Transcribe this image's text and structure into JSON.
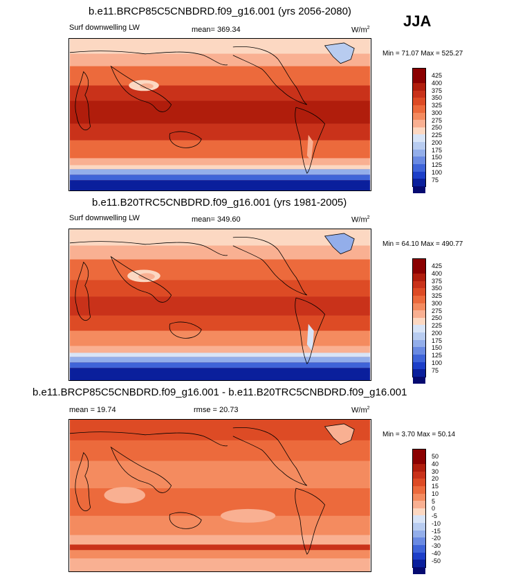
{
  "season": "JJA",
  "panels": [
    {
      "title": "b.e11.BRCP85C5CNBDRD.f09_g16.001 (yrs 2056-2080)",
      "left_label": "Surf downwelling LW",
      "mean_label": "mean= 369.34",
      "units": "W/m",
      "units_sup": "2",
      "minmax": "Min = 71.07 Max = 525.27",
      "colorbar": {
        "levels": [
          "425",
          "400",
          "375",
          "350",
          "325",
          "300",
          "275",
          "250",
          "225",
          "200",
          "175",
          "150",
          "125",
          "100",
          "75"
        ],
        "colors": [
          "#8b0000",
          "#b01d0c",
          "#c9321a",
          "#dd4b25",
          "#ec6a3c",
          "#f48b5f",
          "#f9b092",
          "#fcd8c2",
          "#d8e4f7",
          "#b8ccf0",
          "#93aeea",
          "#6a8ae2",
          "#3f64d8",
          "#1d3fc8",
          "#0a1f9c",
          "#050a70"
        ]
      }
    },
    {
      "title": "b.e11.B20TRC5CNBDRD.f09_g16.001 (yrs 1981-2005)",
      "left_label": "Surf downwelling LW",
      "mean_label": "mean= 349.60",
      "units": "W/m",
      "units_sup": "2",
      "minmax": "Min = 64.10 Max = 490.77",
      "colorbar": {
        "levels": [
          "425",
          "400",
          "375",
          "350",
          "325",
          "300",
          "275",
          "250",
          "225",
          "200",
          "175",
          "150",
          "125",
          "100",
          "75"
        ],
        "colors": [
          "#8b0000",
          "#b01d0c",
          "#c9321a",
          "#dd4b25",
          "#ec6a3c",
          "#f48b5f",
          "#f9b092",
          "#fcd8c2",
          "#d8e4f7",
          "#b8ccf0",
          "#93aeea",
          "#6a8ae2",
          "#3f64d8",
          "#1d3fc8",
          "#0a1f9c",
          "#050a70"
        ]
      }
    },
    {
      "title": "b.e11.BRCP85C5CNBDRD.f09_g16.001 - b.e11.B20TRC5CNBDRD.f09_g16.001",
      "left_label": "mean = 19.74",
      "mean_label": "rmse = 20.73",
      "units": "W/m",
      "units_sup": "2",
      "minmax": "Min = 3.70 Max = 50.14",
      "colorbar": {
        "levels": [
          "50",
          "40",
          "30",
          "20",
          "15",
          "10",
          "5",
          "0",
          "-5",
          "-10",
          "-15",
          "-20",
          "-30",
          "-40",
          "-50"
        ],
        "colors": [
          "#8b0000",
          "#b01d0c",
          "#c9321a",
          "#dd4b25",
          "#ec6a3c",
          "#f48b5f",
          "#f9b092",
          "#fcd8c2",
          "#d8e4f7",
          "#b8ccf0",
          "#93aeea",
          "#6a8ae2",
          "#3f64d8",
          "#1d3fc8",
          "#0a1f9c",
          "#050a70"
        ]
      }
    }
  ]
}
